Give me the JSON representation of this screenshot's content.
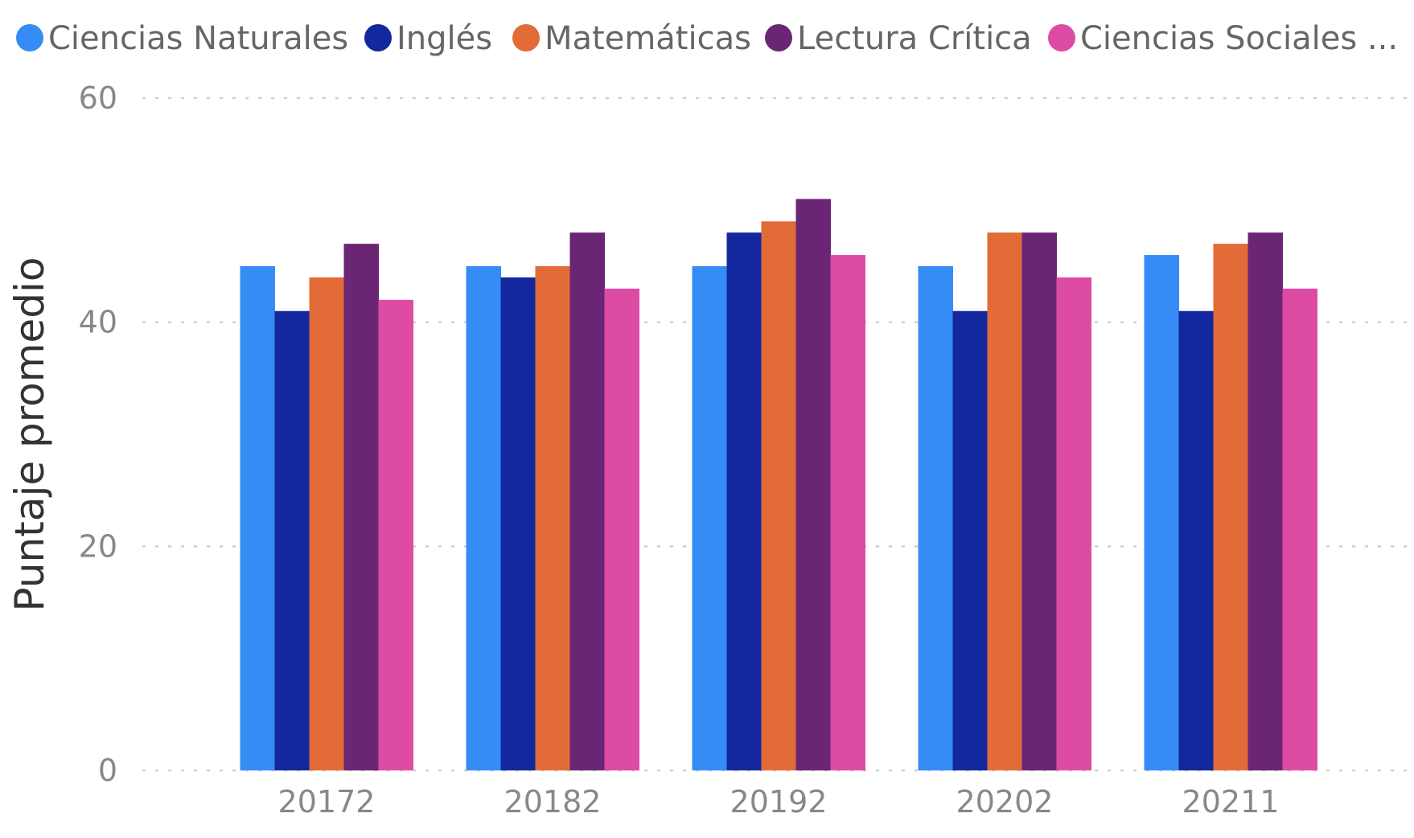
{
  "chart_data": {
    "type": "bar",
    "categories": [
      "20172",
      "20182",
      "20192",
      "20202",
      "20211"
    ],
    "series": [
      {
        "name": "Ciencias Naturales",
        "color": "#368CF5",
        "values": [
          45,
          45,
          45,
          45,
          46
        ]
      },
      {
        "name": "Inglés",
        "color": "#13279E",
        "values": [
          41,
          44,
          48,
          41,
          41
        ]
      },
      {
        "name": "Matemáticas",
        "color": "#E26B38",
        "values": [
          44,
          45,
          49,
          48,
          47
        ]
      },
      {
        "name": "Lectura Crítica",
        "color": "#6A2574",
        "values": [
          47,
          48,
          51,
          48,
          48
        ]
      },
      {
        "name": "Ciencias Sociales ...",
        "color": "#DE4BA5",
        "values": [
          42,
          43,
          46,
          44,
          43
        ]
      }
    ],
    "ylabel": "Puntaje promedio",
    "xlabel": "",
    "ylim": [
      0,
      60
    ],
    "yticks": [
      "0",
      "20",
      "40",
      "60"
    ],
    "grid": true,
    "legend_position": "top"
  }
}
